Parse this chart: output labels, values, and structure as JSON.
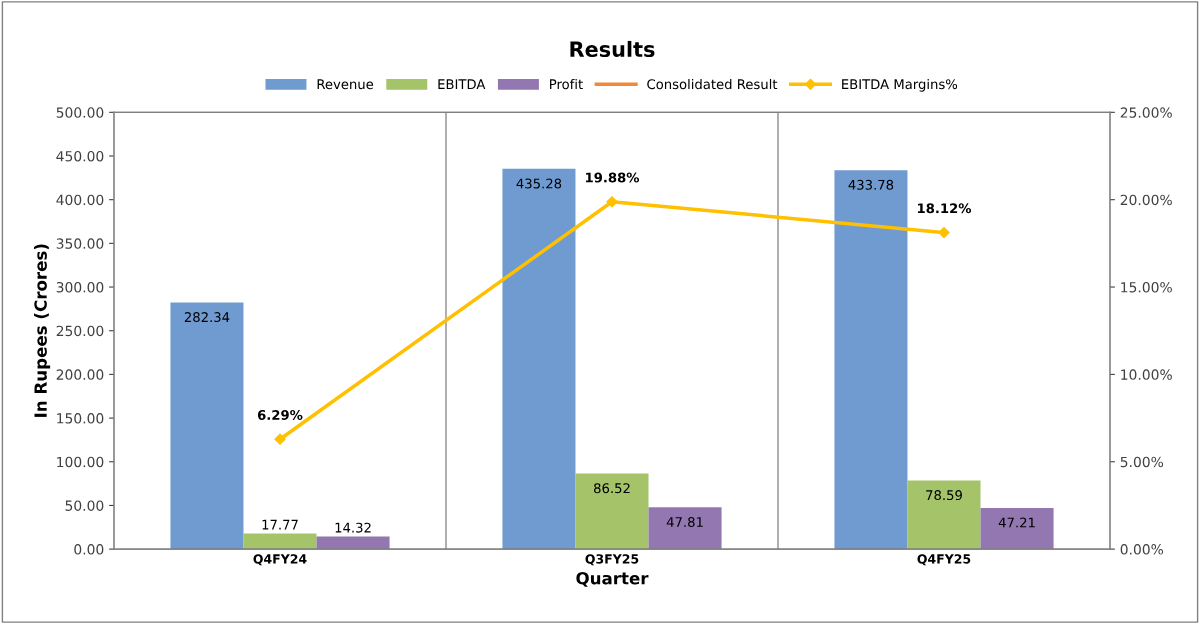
{
  "chart_data": {
    "type": "bar",
    "title": "Results",
    "xlabel": "Quarter",
    "ylabel": "In Rupees (Crores)",
    "categories": [
      "Q4FY24",
      "Q3FY25",
      "Q4FY25"
    ],
    "series": [
      {
        "name": "Revenue",
        "color": "#6f9bd0",
        "values": [
          282.34,
          435.28,
          433.78
        ],
        "value_labels": [
          "282.34",
          "435.28",
          "433.78"
        ]
      },
      {
        "name": "EBITDA",
        "color": "#a5c46a",
        "values": [
          17.77,
          86.52,
          78.59
        ],
        "value_labels": [
          "17.77",
          "86.52",
          "78.59"
        ]
      },
      {
        "name": "Profit",
        "color": "#9277b0",
        "values": [
          14.32,
          47.81,
          47.21
        ],
        "value_labels": [
          "14.32",
          "47.81",
          "47.21"
        ]
      },
      {
        "name": "Consolidated Result",
        "color": "#f08a3a",
        "type": "line",
        "axis": "y2",
        "values": [
          null,
          null,
          null
        ]
      },
      {
        "name": "EBITDA Margins%",
        "color": "#ffc000",
        "type": "line",
        "axis": "y2",
        "marker": "diamond",
        "values": [
          6.29,
          19.88,
          18.12
        ],
        "value_labels": [
          "6.29%",
          "19.88%",
          "18.12%"
        ]
      }
    ],
    "ylim": [
      0,
      500
    ],
    "yticks": [
      {
        "value": 0,
        "label": "0.00"
      },
      {
        "value": 50,
        "label": "50.00"
      },
      {
        "value": 100,
        "label": "100.00"
      },
      {
        "value": 150,
        "label": "150.00"
      },
      {
        "value": 200,
        "label": "200.00"
      },
      {
        "value": 250,
        "label": "250.00"
      },
      {
        "value": 300,
        "label": "300.00"
      },
      {
        "value": 350,
        "label": "350.00"
      },
      {
        "value": 400,
        "label": "400.00"
      },
      {
        "value": 450,
        "label": "450.00"
      },
      {
        "value": 500,
        "label": "500.00"
      }
    ],
    "y2lim": [
      0,
      25
    ],
    "y2ticks": [
      {
        "value": 0,
        "label": "0.00%"
      },
      {
        "value": 5,
        "label": "5.00%"
      },
      {
        "value": 10,
        "label": "10.00%"
      },
      {
        "value": 15,
        "label": "15.00%"
      },
      {
        "value": 20,
        "label": "20.00%"
      },
      {
        "value": 25,
        "label": "25.00%"
      }
    ],
    "grid": "x",
    "legend": "top"
  }
}
